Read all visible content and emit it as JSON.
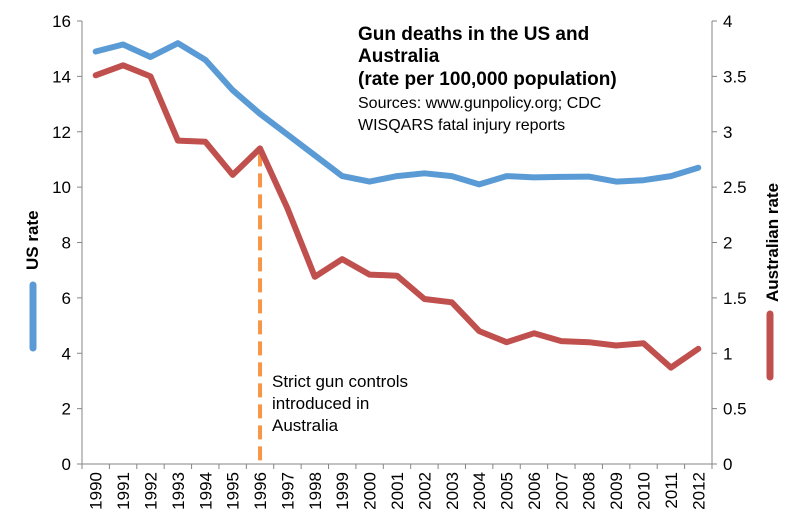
{
  "chart_data": {
    "type": "line",
    "title_lines": [
      "Gun deaths in the US and",
      "Australia",
      "(rate per 100,000 population)"
    ],
    "source_lines": [
      "Sources: www.gunpolicy.org; CDC",
      "WISQARS fatal injury reports"
    ],
    "x": [
      "1990",
      "1991",
      "1992",
      "1993",
      "1994",
      "1995",
      "1996",
      "1997",
      "1998",
      "1999",
      "2000",
      "2001",
      "2002",
      "2003",
      "2004",
      "2005",
      "2006",
      "2007",
      "2008",
      "2009",
      "2010",
      "2011",
      "2012"
    ],
    "y_left": {
      "label": "US rate",
      "min": 0,
      "max": 16,
      "ticks": [
        "0",
        "2",
        "4",
        "6",
        "8",
        "10",
        "12",
        "14",
        "16"
      ]
    },
    "y_right": {
      "label": "Australian rate",
      "min": 0,
      "max": 4,
      "ticks": [
        "0",
        "0.5",
        "1",
        "1.5",
        "2",
        "2.5",
        "3",
        "3.5",
        "4"
      ]
    },
    "series": [
      {
        "name": "US rate",
        "axis": "left",
        "color": "#5b9bd5",
        "values": [
          14.9,
          15.15,
          14.7,
          15.2,
          14.6,
          13.5,
          12.65,
          11.9,
          11.15,
          10.4,
          10.2,
          10.4,
          10.5,
          10.4,
          10.1,
          10.4,
          10.35,
          10.37,
          10.38,
          10.2,
          10.25,
          10.4,
          10.7
        ]
      },
      {
        "name": "Australian rate",
        "axis": "right",
        "color": "#c0504d",
        "values": [
          3.51,
          3.6,
          3.5,
          2.92,
          2.91,
          2.61,
          2.85,
          2.31,
          1.69,
          1.85,
          1.71,
          1.7,
          1.49,
          1.46,
          1.2,
          1.1,
          1.18,
          1.11,
          1.1,
          1.07,
          1.09,
          0.87,
          1.04
        ]
      }
    ],
    "annotation": {
      "x": "1996",
      "color": "#f79646",
      "text_lines": [
        "Strict gun controls",
        "introduced in",
        "Australia"
      ]
    }
  }
}
